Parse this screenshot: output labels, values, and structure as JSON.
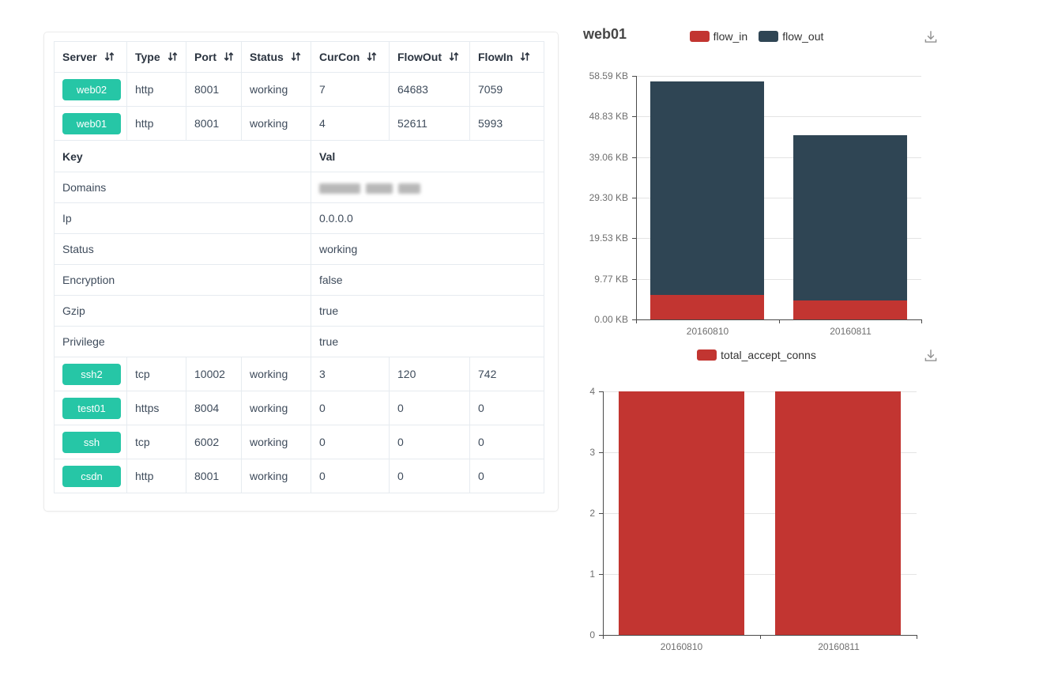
{
  "colors": {
    "accent_green": "#26c6a6",
    "chart_red": "#c23531",
    "chart_dark": "#2f4554",
    "table_border": "#e6ebf0"
  },
  "table": {
    "columns": [
      {
        "label": "Server",
        "sortable": true
      },
      {
        "label": "Type",
        "sortable": true
      },
      {
        "label": "Port",
        "sortable": true
      },
      {
        "label": "Status",
        "sortable": true
      },
      {
        "label": "CurCon",
        "sortable": true
      },
      {
        "label": "FlowOut",
        "sortable": true
      },
      {
        "label": "FlowIn",
        "sortable": true
      }
    ],
    "top_rows": [
      {
        "server": "web02",
        "type": "http",
        "port": "8001",
        "status": "working",
        "curcon": "7",
        "flowout": "64683",
        "flowin": "7059"
      },
      {
        "server": "web01",
        "type": "http",
        "port": "8001",
        "status": "working",
        "curcon": "4",
        "flowout": "52611",
        "flowin": "5993"
      }
    ],
    "kv": {
      "key_label": "Key",
      "val_label": "Val",
      "rows": [
        {
          "key": "Domains",
          "value": "",
          "value_blurred": true
        },
        {
          "key": "Ip",
          "value": "0.0.0.0"
        },
        {
          "key": "Status",
          "value": "working"
        },
        {
          "key": "Encryption",
          "value": "false"
        },
        {
          "key": "Gzip",
          "value": "true"
        },
        {
          "key": "Privilege",
          "value": "true"
        }
      ]
    },
    "bottom_rows": [
      {
        "server": "ssh2",
        "type": "tcp",
        "port": "10002",
        "status": "working",
        "curcon": "3",
        "flowout": "120",
        "flowin": "742"
      },
      {
        "server": "test01",
        "type": "https",
        "port": "8004",
        "status": "working",
        "curcon": "0",
        "flowout": "0",
        "flowin": "0"
      },
      {
        "server": "ssh",
        "type": "tcp",
        "port": "6002",
        "status": "working",
        "curcon": "0",
        "flowout": "0",
        "flowin": "0"
      },
      {
        "server": "csdn",
        "type": "http",
        "port": "8001",
        "status": "working",
        "curcon": "0",
        "flowout": "0",
        "flowin": "0"
      }
    ]
  },
  "chart_data": [
    {
      "type": "bar",
      "stacked": true,
      "title": "web01",
      "categories": [
        "20160810",
        "20160811"
      ],
      "series": [
        {
          "name": "flow_in",
          "color": "#c23531",
          "values": [
            5993,
            4600
          ]
        },
        {
          "name": "flow_out",
          "color": "#2f4554",
          "values": [
            52611,
            40800
          ]
        }
      ],
      "ylim": [
        0,
        60000
      ],
      "ytick_labels": [
        "0.00 KB",
        "9.77 KB",
        "19.53 KB",
        "29.30 KB",
        "39.06 KB",
        "48.83 KB",
        "58.59 KB"
      ],
      "xlabel": "",
      "ylabel": "",
      "legend_position": "top-center",
      "grid": true,
      "note": "values in bytes, axis rendered as KB"
    },
    {
      "type": "bar",
      "stacked": false,
      "title": "",
      "categories": [
        "20160810",
        "20160811"
      ],
      "series": [
        {
          "name": "total_accept_conns",
          "color": "#c23531",
          "values": [
            4,
            4
          ]
        }
      ],
      "ylim": [
        0,
        4
      ],
      "ytick_labels": [
        "0",
        "1",
        "2",
        "3",
        "4"
      ],
      "xlabel": "",
      "ylabel": "",
      "legend_position": "top-center",
      "grid": true
    }
  ]
}
